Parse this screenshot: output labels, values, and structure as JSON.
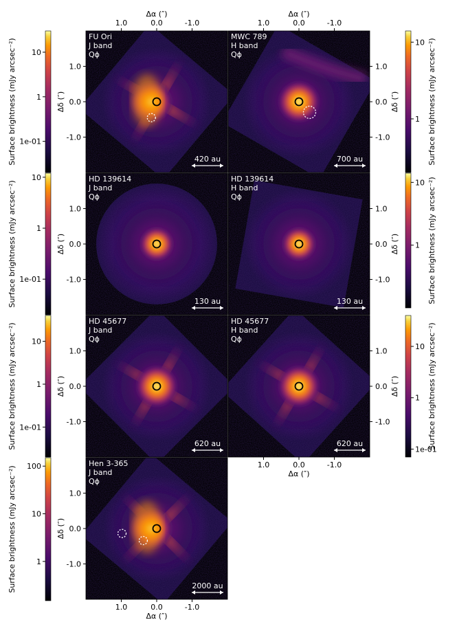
{
  "figure": {
    "x_axis_label": "Δα (″)",
    "y_axis_label": "Δδ (″)",
    "colorbar_label": "Surface brightness (mJy arcsec⁻²)",
    "x_tick_labels": [
      "1.0",
      "0.0",
      "-1.0"
    ],
    "y_tick_labels": [
      "1.0",
      "0.0",
      "-1.0"
    ],
    "colormap": "inferno",
    "colors": {
      "background": "#000000",
      "panel_text": "#ffffff"
    }
  },
  "chart_data": [
    {
      "type": "heatmap",
      "target": "FU Ori",
      "band": "J band",
      "quantity": "Qϕ",
      "scale_bar": "420 au",
      "xlim": [
        2.0,
        -2.0
      ],
      "ylim": [
        -2.0,
        2.0
      ],
      "colorbar_ticks": [
        "10",
        "1",
        "1e-01"
      ],
      "colorbar_range": [
        0.02,
        30
      ],
      "features": {
        "star_marker": true,
        "companion_marker": true
      }
    },
    {
      "type": "heatmap",
      "target": "MWC 789",
      "band": "H band",
      "quantity": "Qϕ",
      "scale_bar": "700 au",
      "xlim": [
        2.0,
        -2.0
      ],
      "ylim": [
        -2.0,
        2.0
      ],
      "colorbar_ticks": [
        "10",
        "1"
      ],
      "colorbar_range": [
        0.2,
        14
      ],
      "features": {
        "star_marker": true,
        "companion_marker": true
      }
    },
    {
      "type": "heatmap",
      "target": "HD 139614",
      "band": "J band",
      "quantity": "Qϕ",
      "scale_bar": "130 au",
      "xlim": [
        2.0,
        -2.0
      ],
      "ylim": [
        -2.0,
        2.0
      ],
      "colorbar_ticks": [
        "10",
        "1",
        "1e-01"
      ],
      "colorbar_range": [
        0.02,
        12
      ],
      "features": {
        "star_marker": true,
        "companion_marker": false
      }
    },
    {
      "type": "heatmap",
      "target": "HD 139614",
      "band": "H band",
      "quantity": "Qϕ",
      "scale_bar": "130 au",
      "xlim": [
        2.0,
        -2.0
      ],
      "ylim": [
        -2.0,
        2.0
      ],
      "colorbar_ticks": [
        "10",
        "1"
      ],
      "colorbar_range": [
        0.1,
        14
      ],
      "features": {
        "star_marker": true,
        "companion_marker": false
      }
    },
    {
      "type": "heatmap",
      "target": "HD 45677",
      "band": "J band",
      "quantity": "Qϕ",
      "scale_bar": "620 au",
      "xlim": [
        2.0,
        -2.0
      ],
      "ylim": [
        -2.0,
        2.0
      ],
      "colorbar_ticks": [
        "10",
        "1",
        "1e-01"
      ],
      "colorbar_range": [
        0.02,
        40
      ],
      "features": {
        "star_marker": true,
        "companion_marker": false
      }
    },
    {
      "type": "heatmap",
      "target": "HD 45677",
      "band": "H band",
      "quantity": "Qϕ",
      "scale_bar": "620 au",
      "xlim": [
        2.0,
        -2.0
      ],
      "ylim": [
        -2.0,
        2.0
      ],
      "colorbar_ticks": [
        "10",
        "1",
        "1e-01"
      ],
      "colorbar_range": [
        0.07,
        40
      ],
      "features": {
        "star_marker": true,
        "companion_marker": false
      }
    },
    {
      "type": "heatmap",
      "target": "Hen 3-365",
      "band": "J band",
      "quantity": "Qϕ",
      "scale_bar": "2000 au",
      "xlim": [
        2.0,
        -2.0
      ],
      "ylim": [
        -2.0,
        2.0
      ],
      "colorbar_ticks": [
        "100",
        "10",
        "1"
      ],
      "colorbar_range": [
        0.15,
        150
      ],
      "features": {
        "star_marker": true,
        "companion_marker": true
      }
    }
  ]
}
